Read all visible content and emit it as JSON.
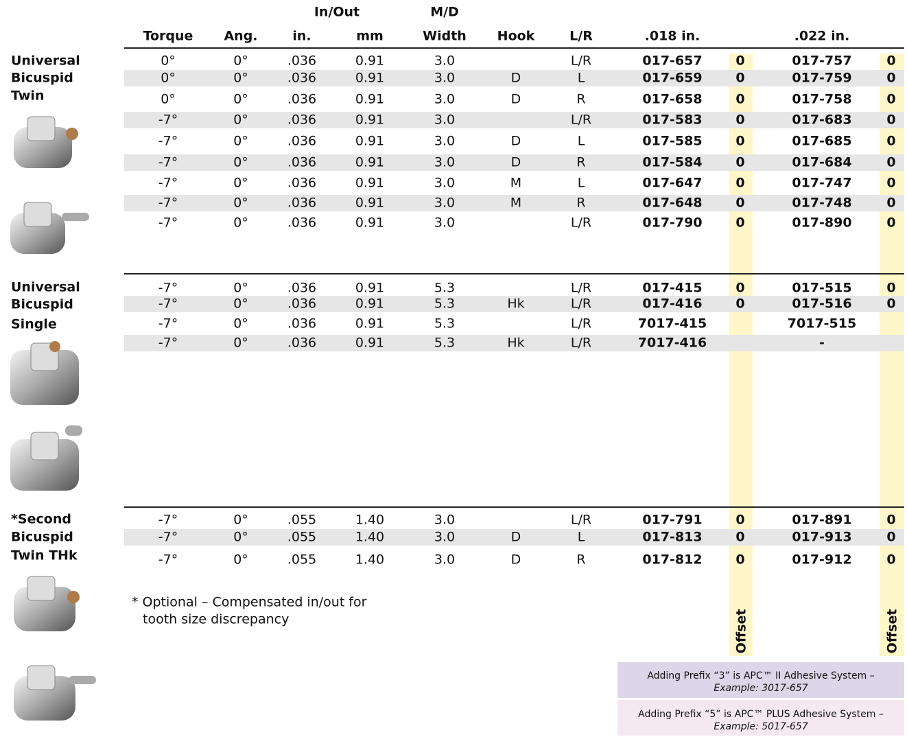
{
  "header": {
    "group_in_out": "In/Out",
    "group_md": "M/D",
    "columns": [
      "Torque",
      "Ang.",
      "in.",
      "mm",
      "Width",
      "Hook",
      "L/R",
      ".018 in.",
      ".022 in."
    ]
  },
  "sections": [
    {
      "label": [
        "Universal",
        "Bicuspid",
        "Twin"
      ],
      "rows": [
        [
          "0°",
          "0°",
          ".036",
          "0.91",
          "3.0",
          null,
          "L/R",
          "017-657",
          "0",
          "017-757",
          "0"
        ],
        [
          "0°",
          "0°",
          ".036",
          "0.91",
          "3.0",
          "D",
          "L",
          "017-659",
          "0",
          "017-759",
          "0"
        ],
        [
          "0°",
          "0°",
          ".036",
          "0.91",
          "3.0",
          "D",
          "R",
          "017-658",
          "0",
          "017-758",
          "0"
        ],
        [
          "-7°",
          "0°",
          ".036",
          "0.91",
          "3.0",
          null,
          "L/R",
          "017-583",
          "0",
          "017-683",
          "0"
        ],
        [
          "-7°",
          "0°",
          ".036",
          "0.91",
          "3.0",
          "D",
          "L",
          "017-585",
          "0",
          "017-685",
          "0"
        ],
        [
          "-7°",
          "0°",
          ".036",
          "0.91",
          "3.0",
          "D",
          "R",
          "017-584",
          "0",
          "017-684",
          "0"
        ],
        [
          "-7°",
          "0°",
          ".036",
          "0.91",
          "3.0",
          "M",
          "L",
          "017-647",
          "0",
          "017-747",
          "0"
        ],
        [
          "-7°",
          "0°",
          ".036",
          "0.91",
          "3.0",
          "M",
          "R",
          "017-648",
          "0",
          "017-748",
          "0"
        ],
        [
          "-7°",
          "0°",
          ".036",
          "0.91",
          "3.0",
          null,
          "L/R",
          "017-790",
          "0",
          "017-890",
          "0"
        ]
      ]
    },
    {
      "label": [
        "Universal",
        "Bicuspid",
        "Single"
      ],
      "rows": [
        [
          "-7°",
          "0°",
          ".036",
          "0.91",
          "5.3",
          null,
          "L/R",
          "017-415",
          "0",
          "017-515",
          "0"
        ],
        [
          "-7°",
          "0°",
          ".036",
          "0.91",
          "5.3",
          "Hk",
          "L/R",
          "017-416",
          "0",
          "017-516",
          "0"
        ],
        [
          "-7°",
          "0°",
          ".036",
          "0.91",
          "5.3",
          null,
          "L/R",
          "7017-415",
          null,
          "7017-515",
          null
        ],
        [
          "-7°",
          "0°",
          ".036",
          "0.91",
          "5.3",
          "Hk",
          "L/R",
          "7017-416",
          null,
          "-",
          null
        ]
      ]
    },
    {
      "label": [
        "*Second",
        "Bicuspid",
        "Twin THk"
      ],
      "rows": [
        [
          "-7°",
          "0°",
          ".055",
          "1.40",
          "3.0",
          null,
          "L/R",
          "017-791",
          "0",
          "017-891",
          "0"
        ],
        [
          "-7°",
          "0°",
          ".055",
          "1.40",
          "3.0",
          "D",
          "L",
          "017-813",
          "0",
          "017-913",
          "0"
        ],
        [
          "-7°",
          "0°",
          ".055",
          "1.40",
          "3.0",
          "D",
          "R",
          "017-812",
          "0",
          "017-912",
          "0"
        ]
      ]
    }
  ],
  "footnote": [
    "* Optional – Compensated in/out for",
    "tooth size discrepancy"
  ],
  "offset_labels": [
    "Offset",
    "Offset"
  ],
  "notes": [
    {
      "text": "Adding Prefix “3” is APC™ II Adhesive System –",
      "example": "Example: 3017-657"
    },
    {
      "text": "Adding Prefix “5” is APC™ PLUS  Adhesive System –",
      "example": "Example: 5017-657"
    }
  ]
}
